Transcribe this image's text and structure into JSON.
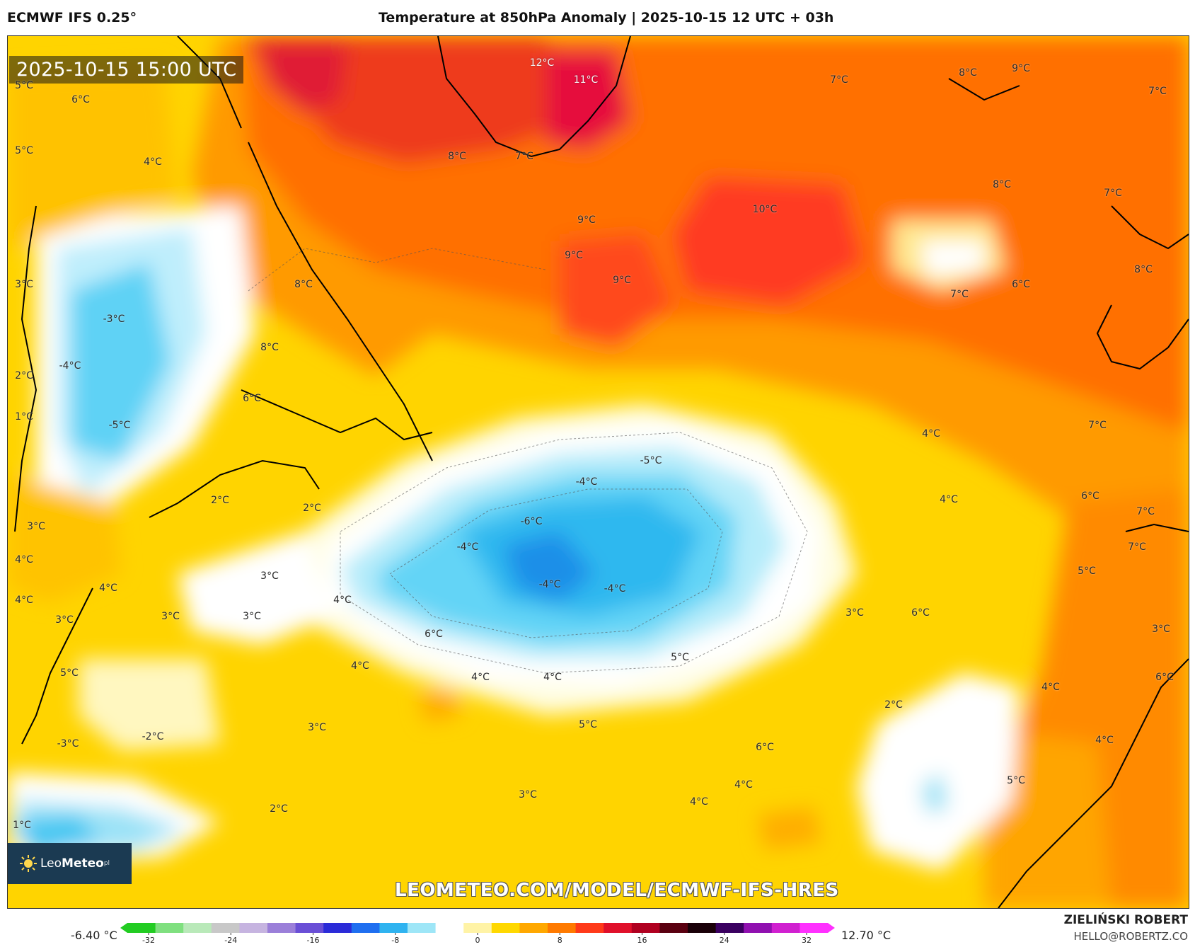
{
  "header": {
    "model": "ECMWF IFS 0.25°",
    "title": "Temperature at 850hPa Anomaly | 2025-10-15 12 UTC + 03h"
  },
  "map": {
    "timestamp": "2025-10-15 15:00 UTC",
    "watermark": "LEOMETEO.COM/MODEL/ECMWF-IFS-HRES",
    "logo": {
      "prefix": "Leo",
      "bold": "Meteo",
      "suffix": "pl"
    },
    "labels": [
      {
        "text": "12°C",
        "light": true
      },
      {
        "text": "11°C",
        "light": true
      },
      {
        "text": "7°C"
      },
      {
        "text": "8°C"
      },
      {
        "text": "9°C"
      },
      {
        "text": "7°C"
      },
      {
        "text": "5°C"
      },
      {
        "text": "6°C"
      },
      {
        "text": "5°C"
      },
      {
        "text": "4°C"
      },
      {
        "text": "8°C"
      },
      {
        "text": "7°C"
      },
      {
        "text": "9°C"
      },
      {
        "text": "9°C"
      },
      {
        "text": "10°C"
      },
      {
        "text": "9°C"
      },
      {
        "text": "8°C"
      },
      {
        "text": "7°C"
      },
      {
        "text": "8°C"
      },
      {
        "text": "7°C"
      },
      {
        "text": "6°C"
      },
      {
        "text": "8°C"
      },
      {
        "text": "3°C"
      },
      {
        "text": "-3°C"
      },
      {
        "text": "-4°C"
      },
      {
        "text": "2°C"
      },
      {
        "text": "8°C"
      },
      {
        "text": "6°C"
      },
      {
        "text": "1°C"
      },
      {
        "text": "-5°C"
      },
      {
        "text": "4°C"
      },
      {
        "text": "7°C"
      },
      {
        "text": "-5°C"
      },
      {
        "text": "-4°C"
      },
      {
        "text": "2°C"
      },
      {
        "text": "2°C"
      },
      {
        "text": "4°C"
      },
      {
        "text": "6°C"
      },
      {
        "text": "7°C"
      },
      {
        "text": "-6°C"
      },
      {
        "text": "3°C"
      },
      {
        "text": "-4°C"
      },
      {
        "text": "7°C"
      },
      {
        "text": "4°C"
      },
      {
        "text": "3°C"
      },
      {
        "text": "5°C"
      },
      {
        "text": "-4°C"
      },
      {
        "text": "-4°C"
      },
      {
        "text": "4°C"
      },
      {
        "text": "4°C"
      },
      {
        "text": "4°C"
      },
      {
        "text": "3°C"
      },
      {
        "text": "3°C"
      },
      {
        "text": "3°C"
      },
      {
        "text": "3°C"
      },
      {
        "text": "6°C"
      },
      {
        "text": "6°C"
      },
      {
        "text": "3°C"
      },
      {
        "text": "5°C"
      },
      {
        "text": "4°C"
      },
      {
        "text": "4°C"
      },
      {
        "text": "5°C"
      },
      {
        "text": "6°C"
      },
      {
        "text": "4°C"
      },
      {
        "text": "2°C"
      },
      {
        "text": "-2°C"
      },
      {
        "text": "-3°C"
      },
      {
        "text": "3°C"
      },
      {
        "text": "5°C"
      },
      {
        "text": "6°C"
      },
      {
        "text": "4°C"
      },
      {
        "text": "3°C"
      },
      {
        "text": "4°C"
      },
      {
        "text": "5°C"
      },
      {
        "text": "2°C"
      },
      {
        "text": "4°C"
      },
      {
        "text": "4°C"
      },
      {
        "text": "1°C"
      }
    ]
  },
  "colorbar": {
    "min_label": "-6.40 °C",
    "max_label": "12.70 °C",
    "ticks": [
      "-32",
      "-24",
      "-16",
      "-8",
      "0",
      "8",
      "16",
      "24",
      "32"
    ],
    "colors": [
      "#22cc22",
      "#7fe07f",
      "#b9e9b9",
      "#c8c8c8",
      "#c6b4e0",
      "#9b7fd9",
      "#6a4fd6",
      "#2b2bd8",
      "#1f6ff0",
      "#2fb3f0",
      "#9ee6f7",
      "#ffffff",
      "#fff3a6",
      "#ffd800",
      "#ffa800",
      "#ff7a00",
      "#ff3a1a",
      "#e0102a",
      "#b00020",
      "#5a0010",
      "#1a0008",
      "#3a0060",
      "#9010b0",
      "#d020d0",
      "#ff30ff"
    ]
  },
  "credits": {
    "name": "ZIELIŃSKI ROBERT",
    "email": "HELLO@ROBERTZ.CO"
  }
}
